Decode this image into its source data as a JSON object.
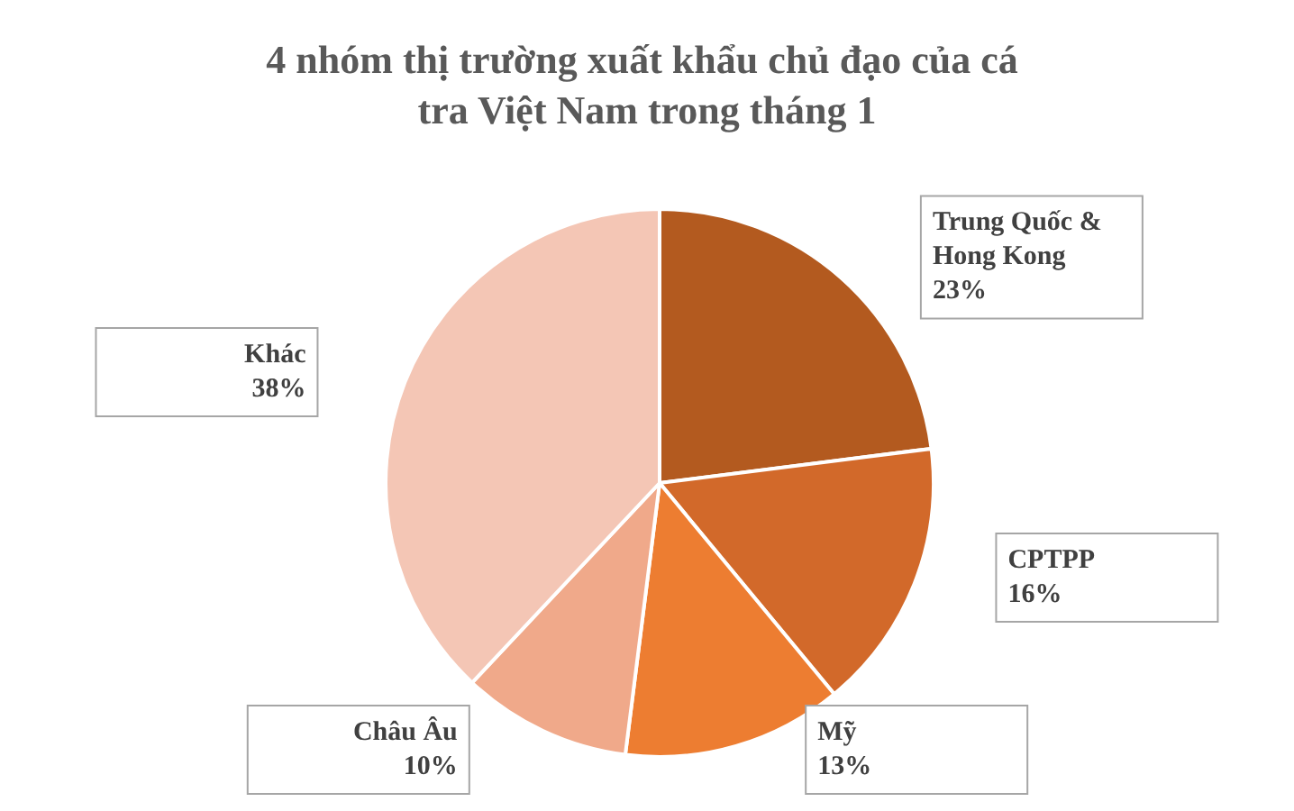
{
  "chart_data": {
    "type": "pie",
    "title": "4 nhóm thị trường xuất khẩu chủ đạo của cá tra Việt Nam trong tháng 1",
    "categories": [
      "Trung Quốc & Hong Kong",
      "CPTPP",
      "Mỹ",
      "Châu Âu",
      "Khác"
    ],
    "values": [
      23,
      16,
      13,
      10,
      38
    ],
    "value_labels": [
      "23%",
      "16%",
      "13%",
      "10%",
      "38%"
    ],
    "colors": [
      "#b35a1f",
      "#d2692a",
      "#ed7d31",
      "#f0a98a",
      "#f4c6b5"
    ],
    "legend": false
  }
}
